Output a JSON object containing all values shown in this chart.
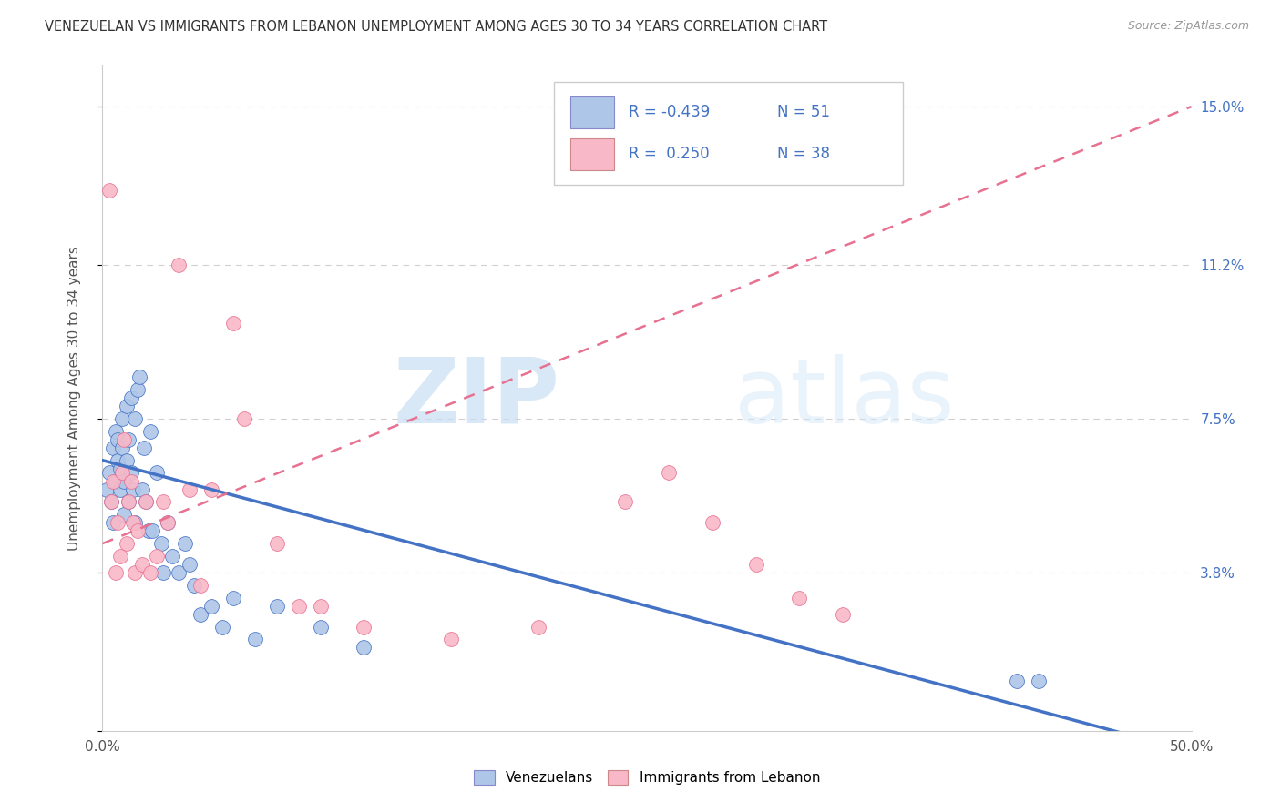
{
  "title": "VENEZUELAN VS IMMIGRANTS FROM LEBANON UNEMPLOYMENT AMONG AGES 30 TO 34 YEARS CORRELATION CHART",
  "source": "Source: ZipAtlas.com",
  "ylabel": "Unemployment Among Ages 30 to 34 years",
  "xmin": 0.0,
  "xmax": 0.5,
  "ymin": 0.0,
  "ymax": 0.16,
  "yticks": [
    0.0,
    0.038,
    0.075,
    0.112,
    0.15
  ],
  "ytick_labels": [
    "",
    "3.8%",
    "7.5%",
    "11.2%",
    "15.0%"
  ],
  "xticks": [
    0.0,
    0.1,
    0.2,
    0.3,
    0.4,
    0.5
  ],
  "xtick_labels": [
    "0.0%",
    "",
    "",
    "",
    "",
    "50.0%"
  ],
  "venezuelan_R": -0.439,
  "venezuelan_N": 51,
  "lebanon_R": 0.25,
  "lebanon_N": 38,
  "venezuelan_color": "#aec6e8",
  "lebanon_color": "#f9b8c8",
  "venezuelan_line_color": "#4472c4",
  "lebanon_line_color": "#e87090",
  "watermark_zip": "ZIP",
  "watermark_atlas": "atlas",
  "venezuelan_x": [
    0.002,
    0.003,
    0.004,
    0.005,
    0.005,
    0.006,
    0.006,
    0.007,
    0.007,
    0.008,
    0.008,
    0.009,
    0.009,
    0.01,
    0.01,
    0.011,
    0.011,
    0.012,
    0.012,
    0.013,
    0.013,
    0.014,
    0.015,
    0.015,
    0.016,
    0.017,
    0.018,
    0.019,
    0.02,
    0.021,
    0.022,
    0.023,
    0.025,
    0.027,
    0.028,
    0.03,
    0.032,
    0.035,
    0.038,
    0.04,
    0.042,
    0.045,
    0.05,
    0.055,
    0.06,
    0.07,
    0.08,
    0.1,
    0.12,
    0.42,
    0.43
  ],
  "venezuelan_y": [
    0.058,
    0.062,
    0.055,
    0.068,
    0.05,
    0.06,
    0.072,
    0.065,
    0.07,
    0.058,
    0.063,
    0.075,
    0.068,
    0.06,
    0.052,
    0.078,
    0.065,
    0.07,
    0.055,
    0.08,
    0.062,
    0.058,
    0.075,
    0.05,
    0.082,
    0.085,
    0.058,
    0.068,
    0.055,
    0.048,
    0.072,
    0.048,
    0.062,
    0.045,
    0.038,
    0.05,
    0.042,
    0.038,
    0.045,
    0.04,
    0.035,
    0.028,
    0.03,
    0.025,
    0.032,
    0.022,
    0.03,
    0.025,
    0.02,
    0.012,
    0.012
  ],
  "lebanon_x": [
    0.003,
    0.004,
    0.005,
    0.006,
    0.007,
    0.008,
    0.009,
    0.01,
    0.011,
    0.012,
    0.013,
    0.014,
    0.015,
    0.016,
    0.018,
    0.02,
    0.022,
    0.025,
    0.028,
    0.03,
    0.035,
    0.04,
    0.045,
    0.05,
    0.06,
    0.065,
    0.08,
    0.09,
    0.1,
    0.12,
    0.16,
    0.2,
    0.24,
    0.26,
    0.28,
    0.3,
    0.32,
    0.34
  ],
  "lebanon_y": [
    0.13,
    0.055,
    0.06,
    0.038,
    0.05,
    0.042,
    0.062,
    0.07,
    0.045,
    0.055,
    0.06,
    0.05,
    0.038,
    0.048,
    0.04,
    0.055,
    0.038,
    0.042,
    0.055,
    0.05,
    0.112,
    0.058,
    0.035,
    0.058,
    0.098,
    0.075,
    0.045,
    0.03,
    0.03,
    0.025,
    0.022,
    0.025,
    0.055,
    0.062,
    0.05,
    0.04,
    0.032,
    0.028
  ]
}
